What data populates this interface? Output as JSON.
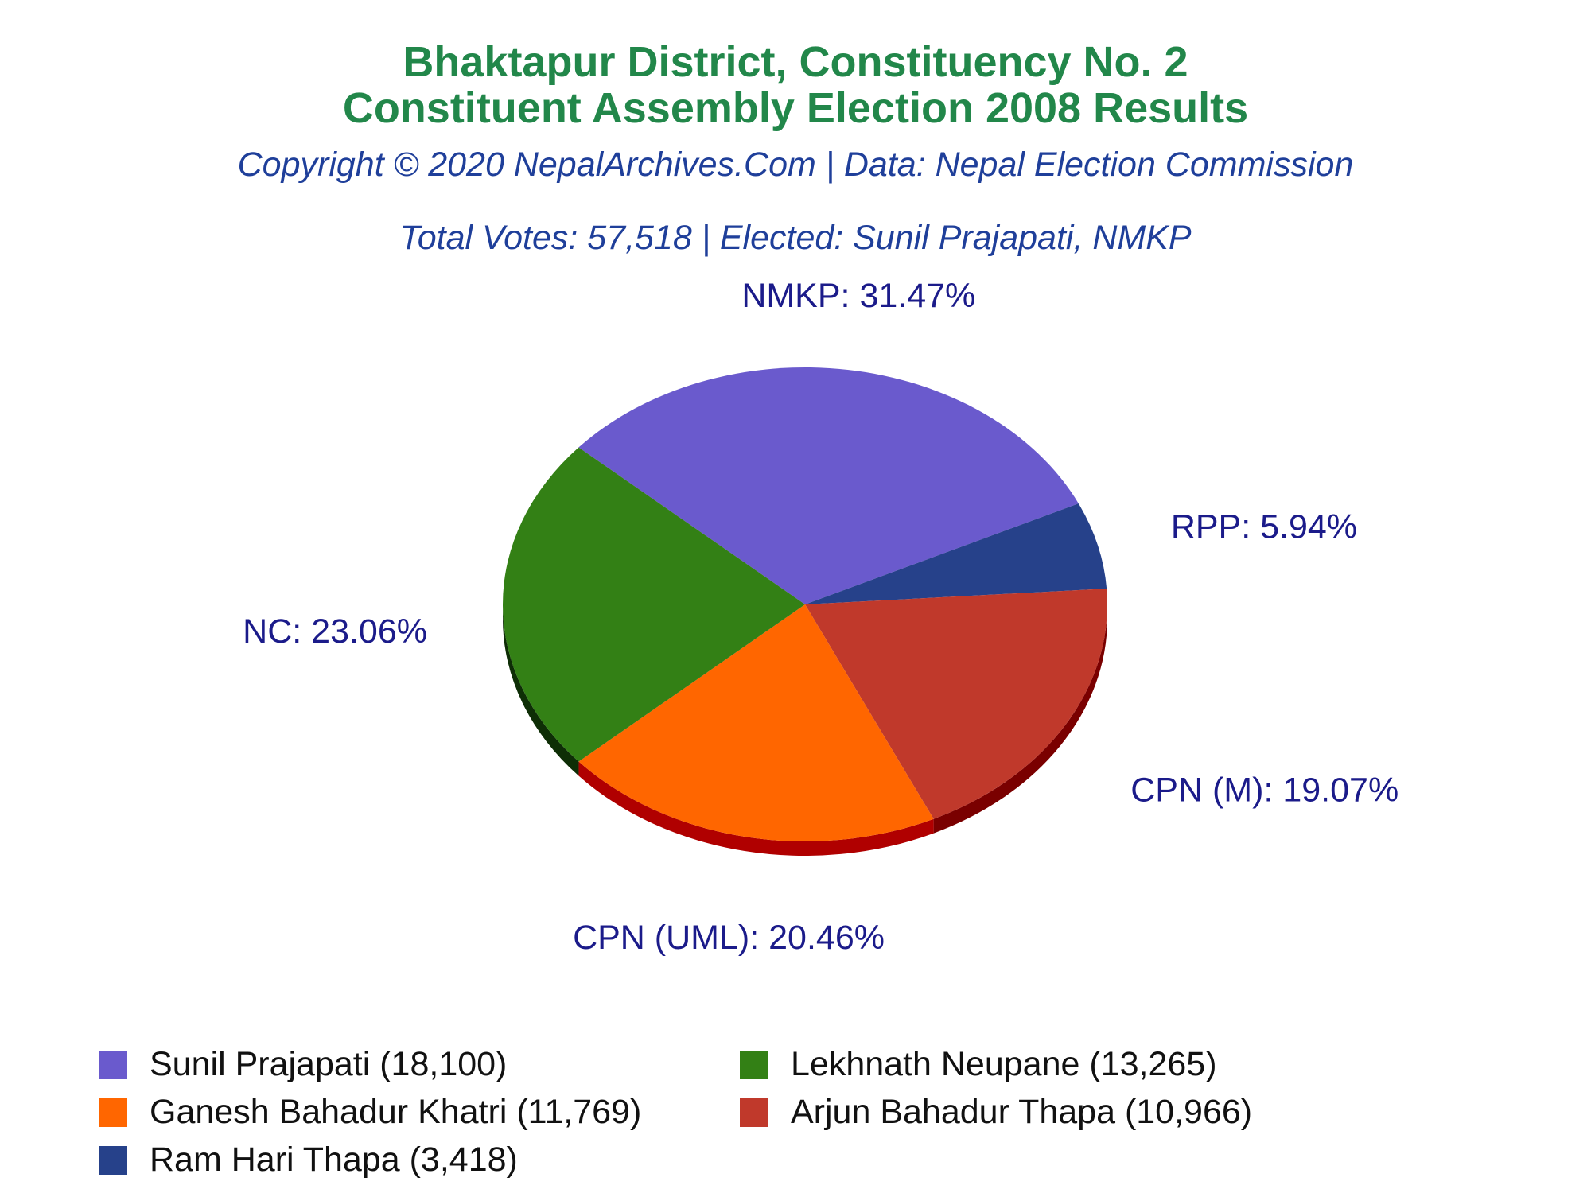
{
  "title_line1": "Bhaktapur District, Constituency No. 2",
  "title_line2": "Constituent Assembly Election 2008 Results",
  "copyright": "Copyright © 2020 NepalArchives.Com | Data: Nepal Election Commission",
  "summary": "Total Votes: 57,518 | Elected: Sunil Prajapati, NMKP",
  "chart_data": {
    "type": "pie",
    "title": "Bhaktapur District, Constituency No. 2 Constituent Assembly Election 2008 Results",
    "style": "3d",
    "slices": [
      {
        "party": "NMKP",
        "candidate": "Sunil Prajapati",
        "votes": 18100,
        "percent": 31.47,
        "label": "NMKP: 31.47%",
        "legend": "Sunil Prajapati (18,100)",
        "color": "#6a5acd",
        "side": "#3f3580"
      },
      {
        "party": "RPP",
        "candidate": "Ram Hari Thapa",
        "votes": 3418,
        "percent": 5.94,
        "label": "RPP: 5.94%",
        "legend": "Ram Hari Thapa (3,418)",
        "color": "#26418a",
        "side": "#132045"
      },
      {
        "party": "CPN (M)",
        "candidate": "Arjun Bahadur Thapa",
        "votes": 10966,
        "percent": 19.07,
        "label": "CPN (M): 19.07%",
        "legend": "Arjun Bahadur Thapa (10,966)",
        "color": "#c0392b",
        "side": "#7a0000"
      },
      {
        "party": "CPN (UML)",
        "candidate": "Ganesh Bahadur Khatri",
        "votes": 11769,
        "percent": 20.46,
        "label": "CPN (UML): 20.46%",
        "legend": "Ganesh Bahadur Khatri (11,769)",
        "color": "#ff6600",
        "side": "#b00000"
      },
      {
        "party": "NC",
        "candidate": "Lekhnath Neupane",
        "votes": 13265,
        "percent": 23.06,
        "label": "NC: 23.06%",
        "legend": "Lekhnath Neupane (13,265)",
        "color": "#338015",
        "side": "#0e2e06"
      }
    ],
    "legend_order": [
      "Sunil Prajapati (18,100)",
      "Lekhnath Neupane (13,265)",
      "Ganesh Bahadur Khatri (11,769)",
      "Arjun Bahadur Thapa (10,966)",
      "Ram Hari Thapa (3,418)"
    ]
  }
}
